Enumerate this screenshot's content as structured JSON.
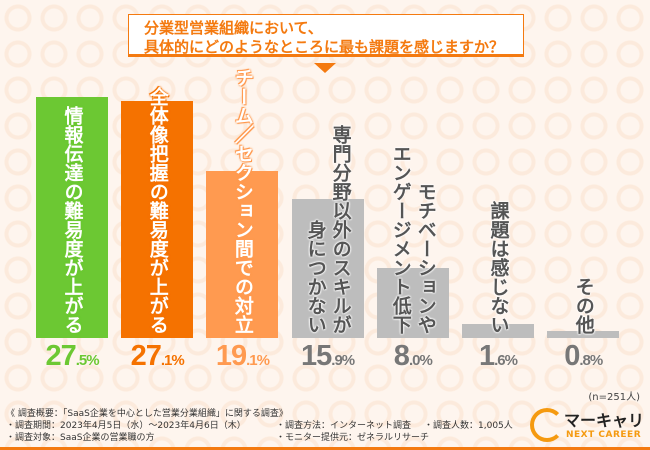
{
  "chart_data": {
    "type": "bar",
    "title_lines": [
      "分業型営業組織において、",
      "具体的にどのようなところに最も課題を感じますか？"
    ],
    "categories": [
      [
        "情報伝達の難易度が上がる"
      ],
      [
        "全体像把握の難易度が上がる"
      ],
      [
        "チーム／セクション間での対立"
      ],
      [
        "専門分野以外のスキルが",
        "身につかない"
      ],
      [
        "モチベーションや",
        "エンゲージメント低下"
      ],
      [
        "課題は感じない"
      ],
      [
        "その他"
      ]
    ],
    "values": [
      27.5,
      27.1,
      19.1,
      15.9,
      8.0,
      1.6,
      0.8
    ],
    "data_labels": [
      "27.5%",
      "27.1%",
      "19.1%",
      "15.9%",
      "8.0%",
      "1.6%",
      "0.8%"
    ],
    "colors": [
      "#6cc833",
      "#f57200",
      "#ff9a50",
      "#bdbdbd",
      "#bdbdbd",
      "#bdbdbd",
      "#bdbdbd"
    ],
    "label_colors": [
      "#6cc833",
      "#f57200",
      "#ff9a50",
      "#777777",
      "#777777",
      "#777777",
      "#777777"
    ],
    "ylim": [
      0,
      28
    ],
    "grid": false,
    "sample_note": "(n=251人)"
  },
  "footer": {
    "overview": "《 調査概要：「SaaS企業を中心とした営業分業組織」に関する調査》",
    "period": "・調査期間：2023年4月5日（水）～2023年4月6日（木）",
    "target": "・調査対象：SaaS企業の営業職の方",
    "method": "・調査方法：インターネット調査",
    "provider": "・モニター提供元：ゼネラルリサーチ",
    "count": "・調査人数：1,005人"
  },
  "logo": {
    "name": "マーキャリ",
    "sub": "NEXT CAREER"
  }
}
